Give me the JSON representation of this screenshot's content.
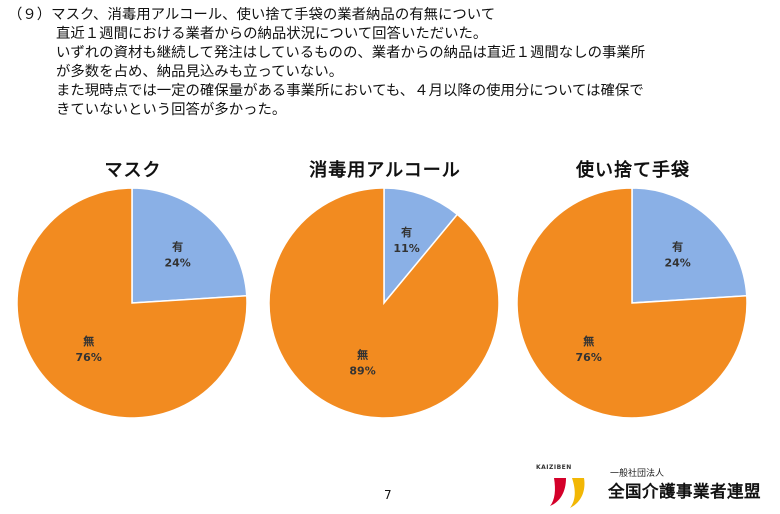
{
  "heading": {
    "line1": "（９）マスク、消毒用アルコール、使い捨て手袋の業者納品の有無について",
    "line2": "直近１週間における業者からの納品状況について回答いただいた。",
    "line3": "いずれの資材も継続して発注はしているものの、業者からの納品は直近１週間なしの事業所",
    "line4": "が多数を占め、納品見込みも立っていない。",
    "line5": "また現時点では一定の確保量がある事業所においても、４月以降の使用分については確保で",
    "line6": "きていないという回答が多かった。"
  },
  "colors": {
    "yes": "#8ab0e6",
    "no": "#f28b20",
    "logo_red": "#d4002a",
    "logo_yellow": "#f2b705"
  },
  "chart_data": [
    {
      "type": "pie",
      "title": "マスク",
      "slices": [
        {
          "label": "有",
          "value": 24,
          "pct_label": "24%"
        },
        {
          "label": "無",
          "value": 76,
          "pct_label": "76%"
        }
      ]
    },
    {
      "type": "pie",
      "title": "消毒用アルコール",
      "slices": [
        {
          "label": "有",
          "value": 11,
          "pct_label": "11%"
        },
        {
          "label": "無",
          "value": 89,
          "pct_label": "89%"
        }
      ]
    },
    {
      "type": "pie",
      "title": "使い捨て手袋",
      "slices": [
        {
          "label": "有",
          "value": 24,
          "pct_label": "24%"
        },
        {
          "label": "無",
          "value": 76,
          "pct_label": "76%"
        }
      ]
    }
  ],
  "footer": {
    "page_number": "7",
    "logo_brand": "KAIZIBEN",
    "logo_small": "一般社団法人",
    "logo_org": "全国介護事業者連盟"
  }
}
